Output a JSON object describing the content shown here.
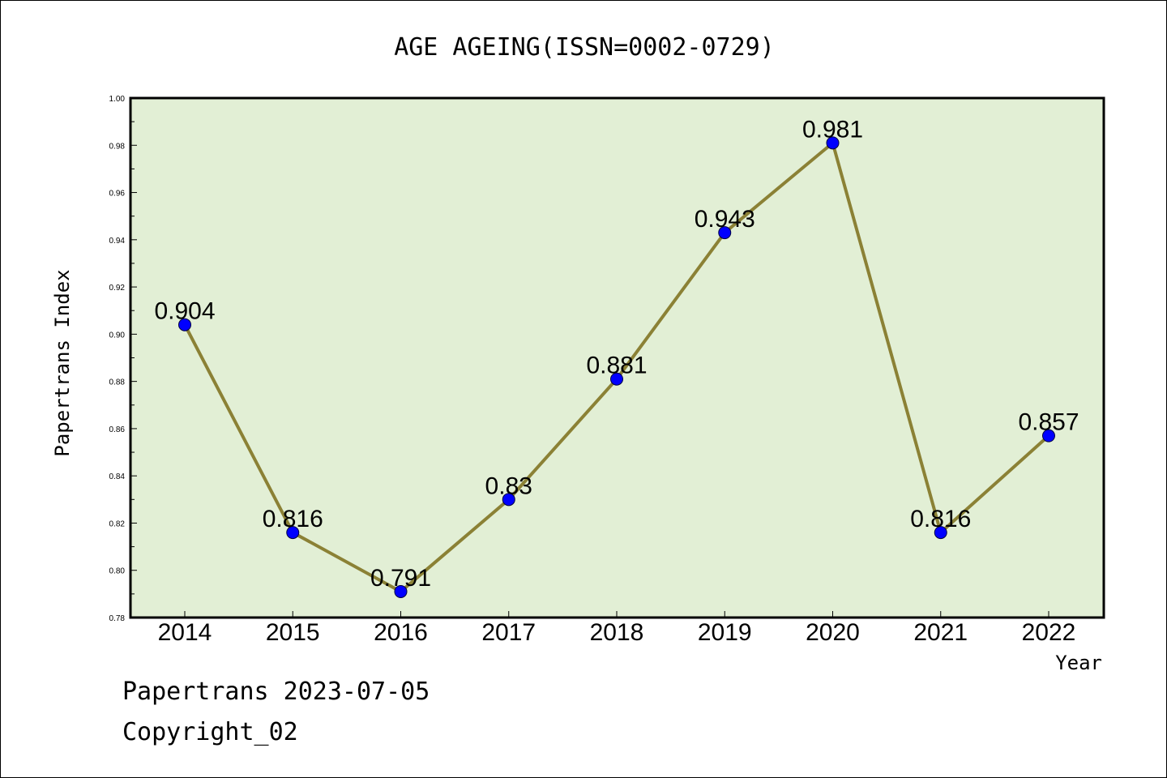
{
  "chart_data": {
    "type": "line",
    "title": "AGE AGEING(ISSN=0002-0729)",
    "xlabel": "Year",
    "ylabel": "Papertrans Index",
    "categories": [
      "2014",
      "2015",
      "2016",
      "2017",
      "2018",
      "2019",
      "2020",
      "2021",
      "2022"
    ],
    "values": [
      0.904,
      0.816,
      0.791,
      0.83,
      0.881,
      0.943,
      0.981,
      0.816,
      0.857
    ],
    "data_labels": [
      "0.904",
      "0.816",
      "0.791",
      "0.83",
      "0.881",
      "0.943",
      "0.981",
      "0.816",
      "0.857"
    ],
    "ylim": [
      0.78,
      1.0
    ],
    "yticks": [
      "0.78",
      "0.80",
      "0.82",
      "0.84",
      "0.86",
      "0.88",
      "0.90",
      "0.92",
      "0.94",
      "0.96",
      "0.98",
      "1.00"
    ],
    "grid": false,
    "colors": {
      "plot_background": "#e2efd5",
      "line": "#8b8135",
      "marker": "#0000ff"
    }
  },
  "footer": {
    "line1": "Papertrans 2023-07-05",
    "line2": "Copyright_02"
  }
}
